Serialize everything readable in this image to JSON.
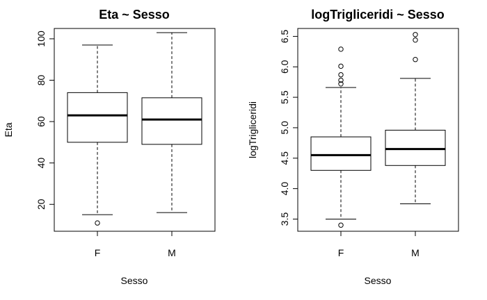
{
  "chart_data": [
    {
      "type": "boxplot",
      "title": "Eta ~ Sesso",
      "xlabel": "Sesso",
      "ylabel": "Eta",
      "categories": [
        "F",
        "M"
      ],
      "ylim": [
        7,
        105
      ],
      "yticks": [
        20,
        40,
        60,
        80,
        100
      ],
      "ytick_labels": [
        "20",
        "40",
        "60",
        "80",
        "100"
      ],
      "boxes": [
        {
          "category": "F",
          "whisker_low": 15,
          "q1": 50,
          "median": 63,
          "q3": 74,
          "whisker_high": 97,
          "outliers": [
            11
          ]
        },
        {
          "category": "M",
          "whisker_low": 16,
          "q1": 49,
          "median": 61,
          "q3": 71.5,
          "whisker_high": 103,
          "outliers": []
        }
      ],
      "grid": false
    },
    {
      "type": "boxplot",
      "title": "logTrigliceridi ~ Sesso",
      "xlabel": "Sesso",
      "ylabel": "logTrigliceridi",
      "categories": [
        "F",
        "M"
      ],
      "ylim": [
        3.3,
        6.63
      ],
      "yticks": [
        3.5,
        4.0,
        4.5,
        5.0,
        5.5,
        6.0,
        6.5
      ],
      "ytick_labels": [
        "3.5",
        "4.0",
        "4.5",
        "5.0",
        "5.5",
        "6.0",
        "6.5"
      ],
      "boxes": [
        {
          "category": "F",
          "whisker_low": 3.5,
          "q1": 4.3,
          "median": 4.55,
          "q3": 4.85,
          "whisker_high": 5.66,
          "outliers": [
            3.4,
            5.72,
            5.78,
            5.87,
            6.01,
            6.29
          ]
        },
        {
          "category": "M",
          "whisker_low": 3.75,
          "q1": 4.38,
          "median": 4.65,
          "q3": 4.96,
          "whisker_high": 5.81,
          "outliers": [
            6.12,
            6.44,
            6.53
          ]
        }
      ],
      "grid": false
    }
  ]
}
